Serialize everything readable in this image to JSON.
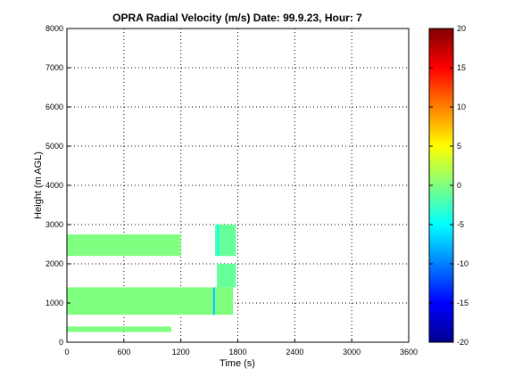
{
  "chart_data": [
    {
      "type": "heatmap",
      "title": "OPRA Radial Velocity (m/s)  Date: 99.9.23, Hour: 7",
      "xlabel": "Time (s)",
      "ylabel": "Height (m AGL)",
      "xlim": [
        0,
        3600
      ],
      "ylim": [
        0,
        8000
      ],
      "x_ticks": [
        0,
        600,
        1200,
        1800,
        2400,
        3000,
        3600
      ],
      "y_ticks": [
        0,
        1000,
        2000,
        3000,
        4000,
        5000,
        6000,
        7000,
        8000
      ],
      "grid": true,
      "colorbar": {
        "range": [
          -20,
          20
        ],
        "ticks": [
          -20,
          -15,
          -10,
          -5,
          0,
          5,
          10,
          15,
          20
        ],
        "colormap": "jet"
      },
      "cells": [
        {
          "x": [
            0,
            1750
          ],
          "y": [
            700,
            1400
          ],
          "value": 0
        },
        {
          "x": [
            0,
            1200
          ],
          "y": [
            2200,
            2750
          ],
          "value": 0
        },
        {
          "x": [
            1560,
            1780
          ],
          "y": [
            2200,
            3000
          ],
          "value": -1
        },
        {
          "x": [
            1580,
            1600
          ],
          "y": [
            2200,
            3000
          ],
          "value": -5
        },
        {
          "x": [
            1540,
            1560
          ],
          "y": [
            700,
            1400
          ],
          "value": -7
        },
        {
          "x": [
            1580,
            1780
          ],
          "y": [
            1400,
            2000
          ],
          "value": -1
        },
        {
          "x": [
            0,
            1100
          ],
          "y": [
            260,
            400
          ],
          "value": 0
        }
      ]
    }
  ]
}
